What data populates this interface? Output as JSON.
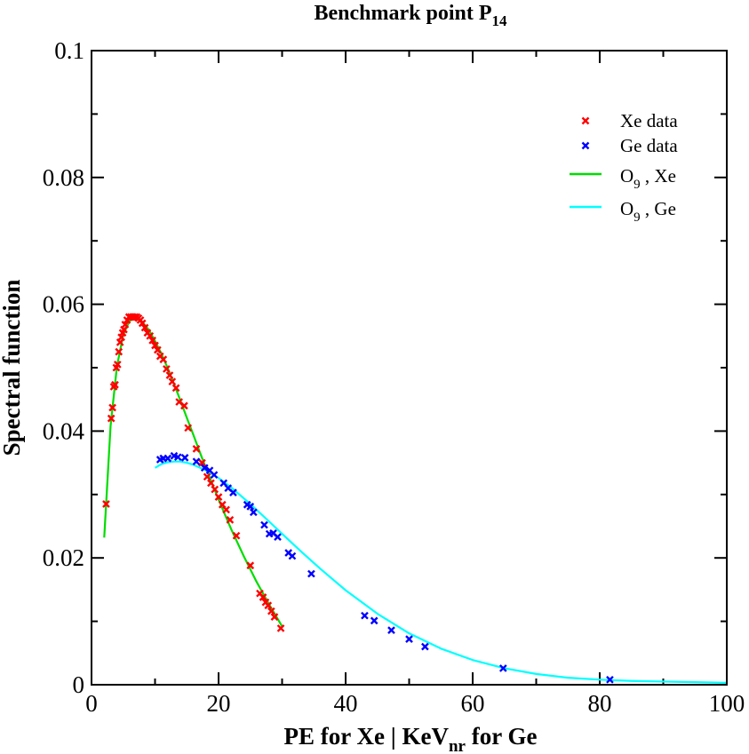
{
  "chart_data": {
    "type": "scatter",
    "title": "Benchmark point P",
    "title_sub": "14",
    "xlabel": "PE for Xe | KeV",
    "xlabel_sub": "nr",
    "xlabel_suffix": " for Ge",
    "ylabel": "Spectral function",
    "xlim": [
      0,
      100
    ],
    "ylim": [
      0,
      0.1
    ],
    "x_ticks": [
      0,
      20,
      40,
      60,
      80,
      100
    ],
    "x_tick_labels": [
      "0",
      "20",
      "40",
      "60",
      "80",
      "100"
    ],
    "y_ticks": [
      0,
      0.02,
      0.04,
      0.06,
      0.08,
      0.1
    ],
    "y_tick_labels": [
      "0",
      "0.02",
      "0.04",
      "0.06",
      "0.08",
      "0.1"
    ],
    "grid": false,
    "legend_position": "top-right",
    "series": [
      {
        "name": "Xe data",
        "kind": "points",
        "marker": "x",
        "color": "#ff0000",
        "x": [
          2.3,
          3.1,
          3.3,
          3.5,
          3.7,
          3.9,
          4.1,
          4.3,
          4.5,
          4.7,
          4.9,
          5.1,
          5.3,
          5.6,
          5.9,
          6.2,
          6.5,
          6.8,
          7.1,
          7.4,
          7.7,
          8.0,
          8.4,
          8.8,
          9.2,
          9.6,
          10.0,
          10.4,
          10.8,
          11.3,
          11.8,
          12.3,
          12.7,
          13.3,
          13.8,
          14.6,
          15.2,
          16.5,
          17.4,
          18.2,
          18.8,
          19.4,
          20.0,
          20.6,
          21.2,
          21.8,
          22.8,
          25.0,
          26.5,
          27.0,
          27.4,
          27.8,
          28.3,
          28.8,
          29.8
        ],
        "y": [
          0.0285,
          0.042,
          0.0437,
          0.047,
          0.0473,
          0.05,
          0.0505,
          0.0525,
          0.054,
          0.0548,
          0.0555,
          0.056,
          0.0568,
          0.0575,
          0.058,
          0.058,
          0.058,
          0.058,
          0.058,
          0.0578,
          0.0575,
          0.057,
          0.0563,
          0.0555,
          0.055,
          0.0543,
          0.0535,
          0.0528,
          0.0518,
          0.0513,
          0.0498,
          0.0488,
          0.0478,
          0.0468,
          0.0446,
          0.044,
          0.0405,
          0.0372,
          0.035,
          0.0328,
          0.0318,
          0.0308,
          0.0296,
          0.0284,
          0.0276,
          0.026,
          0.0235,
          0.0188,
          0.0144,
          0.0138,
          0.013,
          0.0125,
          0.0116,
          0.0107,
          0.0089
        ]
      },
      {
        "name": "Ge data",
        "kind": "points",
        "marker": "x",
        "color": "#0000ff",
        "x": [
          10.8,
          11.3,
          12.0,
          13.0,
          13.6,
          14.7,
          16.5,
          17.8,
          18.6,
          19.3,
          20.8,
          21.5,
          22.3,
          24.5,
          25.0,
          25.5,
          27.2,
          28.0,
          28.6,
          29.3,
          31.0,
          31.6,
          34.6,
          43.0,
          44.5,
          47.2,
          50.0,
          52.5,
          64.8,
          81.6
        ],
        "y": [
          0.0355,
          0.0357,
          0.0357,
          0.0361,
          0.0359,
          0.0358,
          0.0352,
          0.0342,
          0.0338,
          0.0331,
          0.0318,
          0.031,
          0.0303,
          0.0284,
          0.0281,
          0.0272,
          0.0252,
          0.0238,
          0.0239,
          0.0233,
          0.0208,
          0.0203,
          0.0175,
          0.0109,
          0.0101,
          0.0086,
          0.0072,
          0.006,
          0.0026,
          0.0008
        ]
      },
      {
        "name": "O",
        "name_sub": "9",
        "name_suffix": " , Xe",
        "kind": "line",
        "color": "#00dd00",
        "x": [
          2.0,
          3.0,
          4.0,
          5.0,
          6.0,
          7.0,
          8.0,
          9.0,
          10.0,
          11.0,
          12.0,
          13.0,
          14.0,
          15.0,
          16.0,
          17.0,
          18.0,
          20.0,
          22.0,
          24.0,
          26.0,
          28.0,
          30.0
        ],
        "y": [
          0.0232,
          0.0408,
          0.0502,
          0.0552,
          0.0574,
          0.0578,
          0.0572,
          0.056,
          0.0542,
          0.0522,
          0.0499,
          0.0474,
          0.0448,
          0.0421,
          0.0395,
          0.0368,
          0.0342,
          0.0292,
          0.0245,
          0.0202,
          0.0162,
          0.0126,
          0.0092
        ]
      },
      {
        "name": "O",
        "name_sub": "9",
        "name_suffix": " , Ge",
        "kind": "line",
        "color": "#00ffff",
        "x": [
          10.0,
          11.0,
          12.0,
          13.0,
          14.0,
          15.0,
          16.0,
          18.0,
          20.0,
          22.0,
          25.0,
          28.0,
          30.0,
          33.0,
          36.0,
          40.0,
          45.0,
          50.0,
          55.0,
          60.0,
          65.0,
          70.0,
          75.0,
          80.0,
          85.0,
          90.0,
          95.0,
          100.0
        ],
        "y": [
          0.0342,
          0.0348,
          0.0351,
          0.0352,
          0.0352,
          0.035,
          0.0347,
          0.0338,
          0.0326,
          0.0311,
          0.0285,
          0.0257,
          0.0238,
          0.021,
          0.0183,
          0.0149,
          0.0112,
          0.0081,
          0.0057,
          0.0039,
          0.0026,
          0.0017,
          0.0011,
          0.0008,
          0.0006,
          0.0005,
          0.0004,
          0.0003
        ]
      }
    ]
  }
}
